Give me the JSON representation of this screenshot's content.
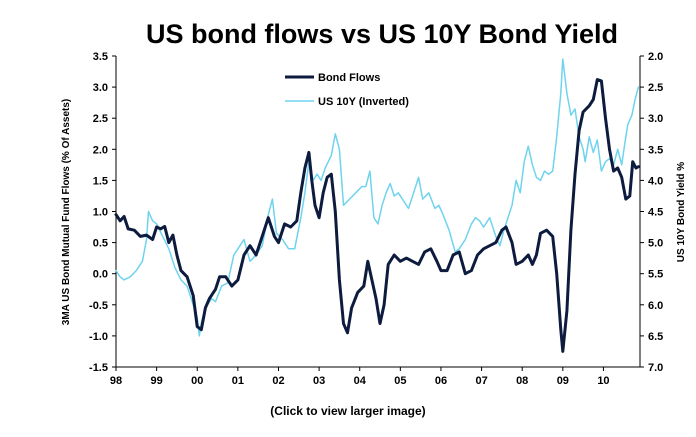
{
  "chart_data": {
    "type": "line",
    "title": "US bond flows vs US 10Y Bond Yield",
    "ylabel_left": "3MA US Bond Mutual Fund Flows (% Of Assets)",
    "ylabel_right": "US 10Y Bond Yield %",
    "xlabel": "",
    "x_ticks": [
      "98",
      "99",
      "00",
      "01",
      "02",
      "03",
      "04",
      "05",
      "06",
      "07",
      "08",
      "09",
      "10"
    ],
    "ylim_left": [
      -1.5,
      3.5
    ],
    "yticks_left": [
      "3.5",
      "3.0",
      "2.5",
      "2.0",
      "1.5",
      "1.0",
      "0.5",
      "0.0",
      "-0.5",
      "-1.0",
      "-1.5"
    ],
    "ylim_right_inverted": [
      2.0,
      7.0
    ],
    "yticks_right": [
      "2.0",
      "2.5",
      "3.0",
      "3.5",
      "4.0",
      "4.5",
      "5.0",
      "5.5",
      "6.0",
      "6.5",
      "7.0"
    ],
    "x_range": [
      1998.0,
      2010.9
    ],
    "legend_position": "top-center",
    "series": [
      {
        "name": "Bond Flows",
        "axis": "left",
        "color": "#0d1b3e",
        "points": [
          [
            1998.0,
            0.95
          ],
          [
            1998.1,
            0.85
          ],
          [
            1998.2,
            0.92
          ],
          [
            1998.3,
            0.72
          ],
          [
            1998.45,
            0.7
          ],
          [
            1998.6,
            0.6
          ],
          [
            1998.75,
            0.62
          ],
          [
            1998.9,
            0.55
          ],
          [
            1999.0,
            0.75
          ],
          [
            1999.1,
            0.72
          ],
          [
            1999.2,
            0.76
          ],
          [
            1999.3,
            0.5
          ],
          [
            1999.4,
            0.62
          ],
          [
            1999.5,
            0.3
          ],
          [
            1999.6,
            0.05
          ],
          [
            1999.75,
            -0.05
          ],
          [
            1999.9,
            -0.35
          ],
          [
            2000.0,
            -0.85
          ],
          [
            2000.1,
            -0.9
          ],
          [
            2000.2,
            -0.55
          ],
          [
            2000.3,
            -0.4
          ],
          [
            2000.45,
            -0.25
          ],
          [
            2000.55,
            -0.05
          ],
          [
            2000.7,
            -0.05
          ],
          [
            2000.85,
            -0.2
          ],
          [
            2001.0,
            -0.1
          ],
          [
            2001.15,
            0.3
          ],
          [
            2001.3,
            0.45
          ],
          [
            2001.45,
            0.3
          ],
          [
            2001.6,
            0.6
          ],
          [
            2001.75,
            0.9
          ],
          [
            2001.9,
            0.6
          ],
          [
            2002.0,
            0.5
          ],
          [
            2002.15,
            0.8
          ],
          [
            2002.3,
            0.75
          ],
          [
            2002.45,
            0.85
          ],
          [
            2002.55,
            1.3
          ],
          [
            2002.65,
            1.7
          ],
          [
            2002.75,
            1.95
          ],
          [
            2002.82,
            1.5
          ],
          [
            2002.9,
            1.1
          ],
          [
            2003.0,
            0.9
          ],
          [
            2003.1,
            1.3
          ],
          [
            2003.2,
            1.55
          ],
          [
            2003.3,
            1.6
          ],
          [
            2003.4,
            1.0
          ],
          [
            2003.5,
            -0.1
          ],
          [
            2003.6,
            -0.8
          ],
          [
            2003.7,
            -0.95
          ],
          [
            2003.8,
            -0.55
          ],
          [
            2003.95,
            -0.3
          ],
          [
            2004.1,
            -0.2
          ],
          [
            2004.2,
            0.2
          ],
          [
            2004.3,
            -0.1
          ],
          [
            2004.4,
            -0.4
          ],
          [
            2004.5,
            -0.8
          ],
          [
            2004.6,
            -0.5
          ],
          [
            2004.7,
            0.15
          ],
          [
            2004.85,
            0.3
          ],
          [
            2005.0,
            0.2
          ],
          [
            2005.15,
            0.25
          ],
          [
            2005.3,
            0.2
          ],
          [
            2005.45,
            0.15
          ],
          [
            2005.6,
            0.35
          ],
          [
            2005.75,
            0.4
          ],
          [
            2005.9,
            0.2
          ],
          [
            2006.0,
            0.05
          ],
          [
            2006.15,
            0.05
          ],
          [
            2006.3,
            0.3
          ],
          [
            2006.45,
            0.35
          ],
          [
            2006.6,
            0.0
          ],
          [
            2006.75,
            0.05
          ],
          [
            2006.9,
            0.3
          ],
          [
            2007.05,
            0.4
          ],
          [
            2007.2,
            0.45
          ],
          [
            2007.35,
            0.5
          ],
          [
            2007.5,
            0.7
          ],
          [
            2007.6,
            0.75
          ],
          [
            2007.75,
            0.5
          ],
          [
            2007.85,
            0.15
          ],
          [
            2008.0,
            0.2
          ],
          [
            2008.15,
            0.3
          ],
          [
            2008.25,
            0.15
          ],
          [
            2008.35,
            0.3
          ],
          [
            2008.45,
            0.65
          ],
          [
            2008.6,
            0.7
          ],
          [
            2008.75,
            0.6
          ],
          [
            2008.85,
            0.0
          ],
          [
            2008.95,
            -0.9
          ],
          [
            2009.0,
            -1.25
          ],
          [
            2009.1,
            -0.6
          ],
          [
            2009.2,
            0.7
          ],
          [
            2009.3,
            1.6
          ],
          [
            2009.4,
            2.3
          ],
          [
            2009.5,
            2.6
          ],
          [
            2009.65,
            2.7
          ],
          [
            2009.75,
            2.8
          ],
          [
            2009.85,
            3.12
          ],
          [
            2009.95,
            3.1
          ],
          [
            2010.05,
            2.5
          ],
          [
            2010.15,
            2.0
          ],
          [
            2010.25,
            1.65
          ],
          [
            2010.35,
            1.7
          ],
          [
            2010.45,
            1.55
          ],
          [
            2010.55,
            1.2
          ],
          [
            2010.65,
            1.25
          ],
          [
            2010.72,
            1.8
          ],
          [
            2010.8,
            1.7
          ],
          [
            2010.86,
            1.72
          ]
        ]
      },
      {
        "name": "US 10Y (Inverted)",
        "axis": "right",
        "color": "#6fd3ee",
        "points": [
          [
            1998.0,
            5.45
          ],
          [
            1998.1,
            5.55
          ],
          [
            1998.2,
            5.6
          ],
          [
            1998.35,
            5.55
          ],
          [
            1998.5,
            5.45
          ],
          [
            1998.65,
            5.3
          ],
          [
            1998.75,
            4.95
          ],
          [
            1998.8,
            4.5
          ],
          [
            1998.9,
            4.65
          ],
          [
            1999.0,
            4.7
          ],
          [
            1999.15,
            4.9
          ],
          [
            1999.3,
            5.1
          ],
          [
            1999.45,
            5.4
          ],
          [
            1999.6,
            5.6
          ],
          [
            1999.75,
            5.7
          ],
          [
            1999.9,
            6.0
          ],
          [
            2000.0,
            6.2
          ],
          [
            2000.05,
            6.5
          ],
          [
            2000.1,
            6.3
          ],
          [
            2000.2,
            6.05
          ],
          [
            2000.35,
            5.9
          ],
          [
            2000.45,
            5.95
          ],
          [
            2000.6,
            5.7
          ],
          [
            2000.75,
            5.65
          ],
          [
            2000.9,
            5.2
          ],
          [
            2001.0,
            5.1
          ],
          [
            2001.15,
            4.95
          ],
          [
            2001.3,
            5.3
          ],
          [
            2001.45,
            5.2
          ],
          [
            2001.6,
            5.05
          ],
          [
            2001.75,
            4.55
          ],
          [
            2001.85,
            4.3
          ],
          [
            2001.95,
            4.85
          ],
          [
            2002.1,
            4.95
          ],
          [
            2002.25,
            5.1
          ],
          [
            2002.4,
            5.1
          ],
          [
            2002.55,
            4.6
          ],
          [
            2002.65,
            4.2
          ],
          [
            2002.75,
            3.7
          ],
          [
            2002.85,
            4.0
          ],
          [
            2002.95,
            3.9
          ],
          [
            2003.05,
            4.0
          ],
          [
            2003.15,
            3.8
          ],
          [
            2003.3,
            3.6
          ],
          [
            2003.4,
            3.25
          ],
          [
            2003.5,
            3.5
          ],
          [
            2003.6,
            4.4
          ],
          [
            2003.75,
            4.3
          ],
          [
            2003.9,
            4.2
          ],
          [
            2004.05,
            4.1
          ],
          [
            2004.15,
            4.1
          ],
          [
            2004.25,
            3.85
          ],
          [
            2004.35,
            4.6
          ],
          [
            2004.45,
            4.7
          ],
          [
            2004.55,
            4.4
          ],
          [
            2004.65,
            4.2
          ],
          [
            2004.75,
            4.05
          ],
          [
            2004.85,
            4.25
          ],
          [
            2004.95,
            4.2
          ],
          [
            2005.05,
            4.3
          ],
          [
            2005.2,
            4.45
          ],
          [
            2005.35,
            4.15
          ],
          [
            2005.45,
            3.95
          ],
          [
            2005.55,
            4.3
          ],
          [
            2005.7,
            4.2
          ],
          [
            2005.85,
            4.45
          ],
          [
            2005.95,
            4.4
          ],
          [
            2006.05,
            4.55
          ],
          [
            2006.2,
            4.8
          ],
          [
            2006.35,
            5.15
          ],
          [
            2006.45,
            5.1
          ],
          [
            2006.6,
            4.95
          ],
          [
            2006.75,
            4.7
          ],
          [
            2006.85,
            4.6
          ],
          [
            2006.95,
            4.65
          ],
          [
            2007.05,
            4.75
          ],
          [
            2007.2,
            4.6
          ],
          [
            2007.35,
            4.9
          ],
          [
            2007.45,
            5.05
          ],
          [
            2007.55,
            4.8
          ],
          [
            2007.65,
            4.6
          ],
          [
            2007.75,
            4.4
          ],
          [
            2007.85,
            4.0
          ],
          [
            2007.95,
            4.2
          ],
          [
            2008.05,
            3.7
          ],
          [
            2008.15,
            3.45
          ],
          [
            2008.25,
            3.75
          ],
          [
            2008.35,
            3.95
          ],
          [
            2008.45,
            4.0
          ],
          [
            2008.55,
            3.85
          ],
          [
            2008.65,
            3.9
          ],
          [
            2008.75,
            3.85
          ],
          [
            2008.85,
            3.3
          ],
          [
            2008.95,
            2.6
          ],
          [
            2009.0,
            2.05
          ],
          [
            2009.1,
            2.6
          ],
          [
            2009.2,
            2.95
          ],
          [
            2009.3,
            2.85
          ],
          [
            2009.4,
            3.3
          ],
          [
            2009.5,
            3.5
          ],
          [
            2009.55,
            3.7
          ],
          [
            2009.65,
            3.3
          ],
          [
            2009.75,
            3.55
          ],
          [
            2009.85,
            3.35
          ],
          [
            2009.95,
            3.85
          ],
          [
            2010.05,
            3.7
          ],
          [
            2010.15,
            3.65
          ],
          [
            2010.25,
            3.75
          ],
          [
            2010.35,
            3.5
          ],
          [
            2010.45,
            3.75
          ],
          [
            2010.55,
            3.3
          ],
          [
            2010.6,
            3.1
          ],
          [
            2010.7,
            2.95
          ],
          [
            2010.78,
            2.7
          ],
          [
            2010.86,
            2.5
          ]
        ]
      }
    ]
  },
  "caption": "(Click to view larger image)"
}
